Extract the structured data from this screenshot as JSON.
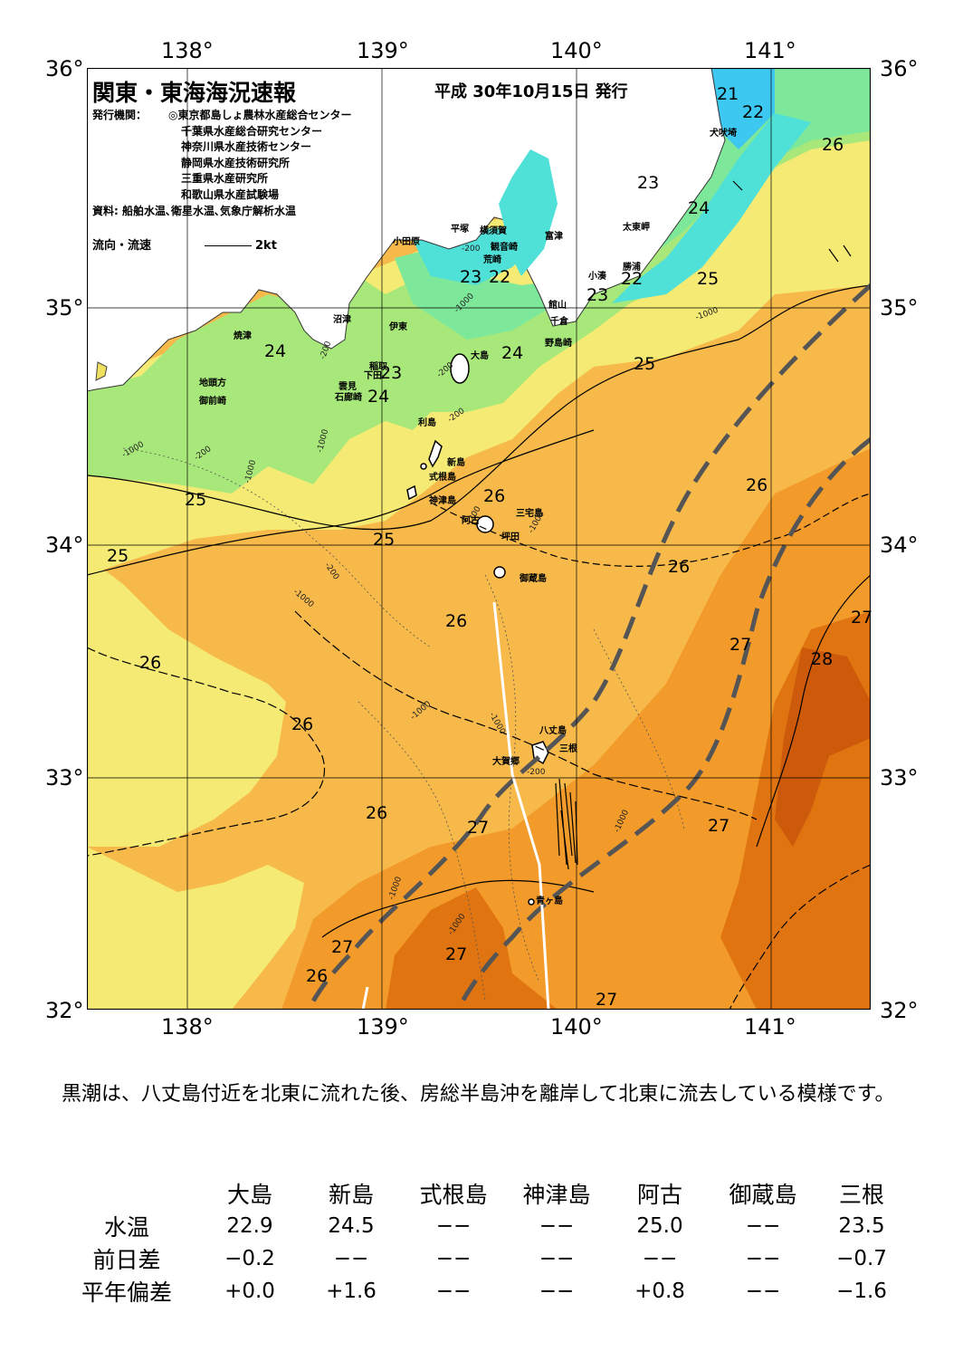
{
  "title": "関東・東海海況速報",
  "issue": "平成 30年10月15日 発行",
  "agencies": {
    "label": "発行機関：",
    "items": [
      "◎東京都島しょ農林水産総合センター",
      "千葉県水産総合研究センター",
      "神奈川県水産技術センター",
      "静岡県水産技術研究所",
      "三重県水産研究所",
      "和歌山県水産試験場"
    ],
    "sources": "資料: 船舶水温､衛星水温､気象庁解析水温"
  },
  "legend": {
    "label": "流向・流速",
    "speed": "2kt"
  },
  "axes": {
    "lon_ticks": [
      "138°",
      "139°",
      "140°",
      "141°"
    ],
    "lat_ticks": [
      "36°",
      "35°",
      "34°",
      "33°",
      "32°"
    ]
  },
  "colors": {
    "t21": "#3cc8f0",
    "t22": "#4fe0d8",
    "t23": "#7ee89a",
    "t24": "#a8e87a",
    "t25": "#f4ea74",
    "t26": "#f6b94a",
    "t27": "#f29b2a",
    "t28": "#e07410",
    "t29": "#cc5a0a",
    "land": "#ffffff",
    "kuroshio_axis": "#555555"
  },
  "isotherm_labels": [
    "21",
    "22",
    "23",
    "22",
    "23",
    "22",
    "22",
    "23",
    "24",
    "24",
    "25",
    "26",
    "23",
    "24",
    "24",
    "24",
    "25",
    "25",
    "26",
    "25",
    "25",
    "26",
    "26",
    "26",
    "26",
    "27",
    "28",
    "26",
    "26",
    "27",
    "27",
    "27",
    "27",
    "26",
    "27"
  ],
  "places": [
    "犬吠埼",
    "太東岬",
    "勝浦",
    "小湊",
    "館山",
    "千倉",
    "野島崎",
    "富津",
    "観音崎",
    "横須賀",
    "荒崎",
    "平塚",
    "小田原",
    "沼津",
    "伊東",
    "焼津",
    "稲取",
    "下田",
    "雲見",
    "石廊崎",
    "地頭方",
    "御前崎",
    "大島",
    "利島",
    "新島",
    "式根島",
    "神津島",
    "三宅島",
    "阿古",
    "坪田",
    "御蔵島",
    "八丈島",
    "三根",
    "大賀郷",
    "青ヶ島"
  ],
  "depth_labels": [
    "-200",
    "-200",
    "-200",
    "-200",
    "-200",
    "-200",
    "-200",
    "-1000",
    "-1000",
    "-1000",
    "-1000",
    "-1000",
    "-1000",
    "-1000",
    "-1000",
    "-1000",
    "-1000",
    "-1000",
    "-1000",
    "-1000"
  ],
  "commentary": "　黒潮は、八丈島付近を北東に流れた後、房総半島沖を離岸して北東に流去している模様です。",
  "table": {
    "columns": [
      "大島",
      "新島",
      "式根島",
      "神津島",
      "阿古",
      "御蔵島",
      "三根"
    ],
    "rows": [
      {
        "label": "水温",
        "values": [
          "22.9",
          "24.5",
          "−−",
          "−−",
          "25.0",
          "−−",
          "23.5"
        ]
      },
      {
        "label": "前日差",
        "values": [
          "−0.2",
          "−−",
          "−−",
          "−−",
          "−−",
          "−−",
          "−0.7"
        ]
      },
      {
        "label": "平年偏差",
        "values": [
          "+0.0",
          "+1.6",
          "−−",
          "−−",
          "+0.8",
          "−−",
          "−1.6"
        ]
      }
    ]
  }
}
